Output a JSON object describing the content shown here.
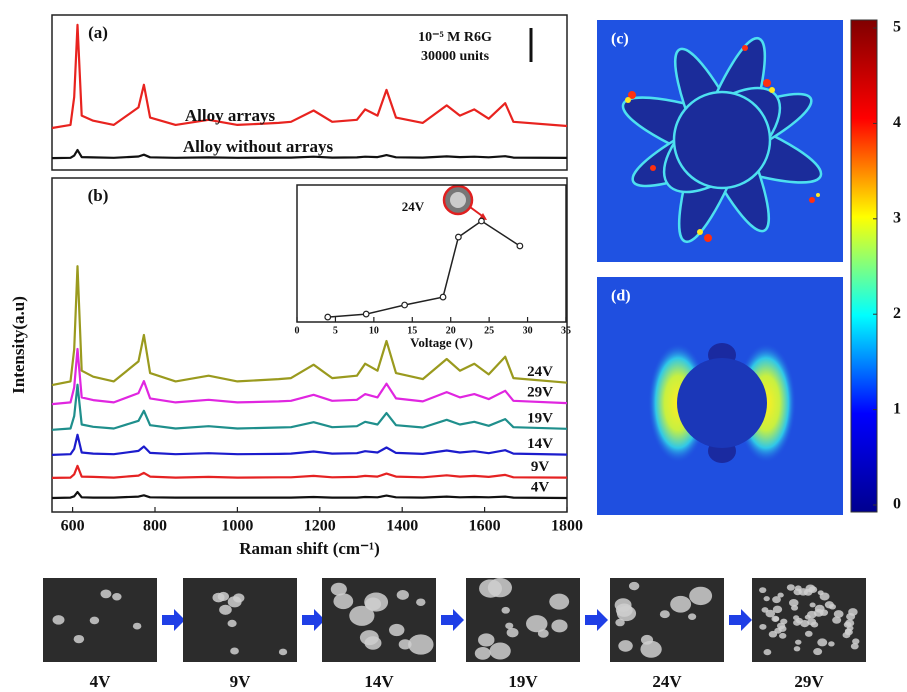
{
  "chart_data": [
    {
      "type": "line",
      "title": "(a)",
      "xlim": [
        550,
        1800
      ],
      "ylim": [
        0,
        100
      ],
      "annotations": [
        "10⁻⁵ M R6G",
        "30000 units"
      ],
      "x": [
        550,
        595,
        604,
        612,
        622,
        650,
        700,
        760,
        773,
        788,
        850,
        930,
        1000,
        1100,
        1130,
        1185,
        1230,
        1290,
        1310,
        1340,
        1362,
        1385,
        1450,
        1508,
        1540,
        1575,
        1610,
        1650,
        1670,
        1800
      ],
      "series": [
        {
          "name": "Alloy arrays",
          "color": "#e8231f",
          "values": [
            27.1,
            29.1,
            47.1,
            93.6,
            35.1,
            31.8,
            29.1,
            40.4,
            55.0,
            33.8,
            29.1,
            32.4,
            29.1,
            30.4,
            31.1,
            38.4,
            31.1,
            32.4,
            39.1,
            35.1,
            51.7,
            33.8,
            30.4,
            41.7,
            35.1,
            39.1,
            33.1,
            43.1,
            31.1,
            28.4
          ]
        },
        {
          "name": "Alloy without arrays",
          "color": "#111111",
          "values": [
            7.7,
            7.9,
            9.3,
            12.9,
            8.3,
            8.1,
            7.9,
            8.7,
            9.9,
            8.2,
            7.9,
            8.1,
            7.9,
            8,
            8,
            8.6,
            8,
            8.1,
            8.6,
            8.3,
            9.6,
            8.2,
            8,
            8.8,
            8.3,
            8.6,
            8.2,
            8.9,
            8,
            7.8
          ]
        }
      ]
    },
    {
      "type": "line",
      "title": "(b)",
      "xlabel": "Raman shift (cm⁻¹)",
      "ylabel": "Intensity(a.u)",
      "xlim": [
        550,
        1800
      ],
      "ylim": [
        0,
        100
      ],
      "xticks": [
        600,
        800,
        1000,
        1200,
        1400,
        1600,
        1800
      ],
      "x": [
        550,
        595,
        604,
        612,
        622,
        650,
        700,
        760,
        773,
        788,
        850,
        930,
        1000,
        1100,
        1130,
        1185,
        1230,
        1290,
        1310,
        1340,
        1362,
        1385,
        1450,
        1508,
        1540,
        1575,
        1610,
        1650,
        1670,
        1800
      ],
      "series": [
        {
          "name": "24V",
          "color": "#9a9a1e",
          "values": [
            38,
            39.1,
            48.7,
            73.6,
            42.3,
            40.5,
            39.1,
            45.1,
            53,
            41.6,
            39.1,
            40.8,
            39.1,
            39.8,
            40.1,
            44.1,
            40.1,
            40.8,
            44.4,
            42.3,
            51.2,
            41.6,
            39.8,
            45.8,
            42.3,
            44.4,
            41.2,
            46.5,
            40.1,
            38.7
          ]
        },
        {
          "name": "29V",
          "color": "#e026e0",
          "values": [
            32.3,
            32.8,
            37.3,
            48.8,
            34.3,
            33.5,
            32.8,
            35.6,
            39.2,
            34,
            32.8,
            33.6,
            32.8,
            33.1,
            33.3,
            35.1,
            33.3,
            33.6,
            35.3,
            34.3,
            38.4,
            34,
            33.1,
            35.9,
            34.3,
            35.3,
            33.8,
            36.3,
            33.3,
            32.6
          ]
        },
        {
          "name": "19V",
          "color": "#1f8f8c",
          "values": [
            24.6,
            25,
            28.7,
            38.1,
            26.2,
            25.5,
            25,
            27.3,
            30.3,
            26,
            25,
            25.7,
            25,
            25.3,
            25.4,
            26.9,
            25.4,
            25.7,
            27,
            26.2,
            29.6,
            26,
            25.3,
            27.6,
            26.2,
            27,
            25.8,
            27.8,
            25.4,
            24.9
          ]
        },
        {
          "name": "14V",
          "color": "#1c1ccc",
          "values": [
            17.1,
            17.3,
            18.9,
            23.1,
            17.8,
            17.5,
            17.3,
            18.3,
            19.6,
            17.7,
            17.3,
            17.6,
            17.3,
            17.4,
            17.5,
            18.1,
            17.5,
            17.6,
            18.2,
            17.8,
            19.3,
            17.7,
            17.4,
            18.4,
            17.8,
            18.2,
            17.6,
            18.5,
            17.5,
            17.2
          ]
        },
        {
          "name": "9V",
          "color": "#e52222",
          "values": [
            10.2,
            10.3,
            11.3,
            13.8,
            10.6,
            10.5,
            10.3,
            10.9,
            11.7,
            10.6,
            10.3,
            10.5,
            10.3,
            10.4,
            10.4,
            10.8,
            10.4,
            10.5,
            10.8,
            10.6,
            11.5,
            10.6,
            10.4,
            11,
            10.6,
            10.8,
            10.5,
            11.1,
            10.4,
            10.3
          ]
        },
        {
          "name": "4V",
          "color": "#111111",
          "values": [
            4.2,
            4.3,
            4.7,
            6,
            4.4,
            4.3,
            4.3,
            4.6,
            5,
            4.4,
            4.3,
            4.3,
            4.3,
            4.3,
            4.3,
            4.5,
            4.3,
            4.3,
            4.5,
            4.4,
            4.9,
            4.4,
            4.3,
            4.6,
            4.4,
            4.5,
            4.4,
            4.6,
            4.3,
            4.2
          ]
        }
      ]
    },
    {
      "type": "scatter",
      "xlabel": "Voltage (V)",
      "annotation": "24V",
      "color": "#222222",
      "xlim": [
        0,
        35
      ],
      "ylim": [
        0,
        100
      ],
      "xticks": [
        0,
        5,
        10,
        15,
        20,
        25,
        30,
        35
      ],
      "x": [
        4,
        9,
        14,
        19,
        21,
        24,
        29
      ],
      "values": [
        3.6,
        5.8,
        12.4,
        18.2,
        62,
        73.7,
        55.5
      ]
    },
    {
      "type": "colorbar",
      "ylim": [
        0,
        5
      ],
      "yticks": [
        0,
        1,
        2,
        3,
        4,
        5
      ],
      "colors": [
        "#00008f",
        "#0000ff",
        "#00ffff",
        "#ffff00",
        "#ff0000",
        "#800000"
      ]
    }
  ],
  "panels": {
    "c": "(c)",
    "d": "(d)"
  },
  "sem": {
    "labels": [
      "4V",
      "9V",
      "14V",
      "19V",
      "24V",
      "29V"
    ]
  }
}
